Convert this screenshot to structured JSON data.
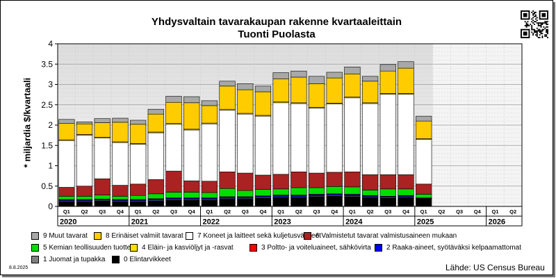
{
  "chart_data": {
    "type": "bar",
    "stacked": true,
    "title": "Yhdysvaltain tavarakaupan rakenne kvartaaleittain",
    "subtitle": "Tuonti Puolasta",
    "ylabel": "* miljardia $/kvartaali",
    "ylim": [
      0,
      4
    ],
    "yticks": [
      "0",
      "0.5",
      "1",
      "1.5",
      "2",
      "2.5",
      "3",
      "3.5",
      "4"
    ],
    "grid": true,
    "legend_position": "bottom",
    "years": [
      "2020",
      "2021",
      "2022",
      "2023",
      "2024",
      "2025",
      "2026"
    ],
    "categories": [
      "Q1",
      "Q2",
      "Q3",
      "Q4",
      "Q1",
      "Q2",
      "Q3",
      "Q4",
      "Q1",
      "Q2",
      "Q3",
      "Q4",
      "Q1",
      "Q2",
      "Q3",
      "Q4",
      "Q1",
      "Q2",
      "Q3",
      "Q4",
      "Q1",
      "Q2",
      "Q3",
      "Q4",
      "Q1",
      "Q2"
    ],
    "series": [
      {
        "name": "0 Elintarvikkeet",
        "color": "#000000",
        "values": [
          0.12,
          0.12,
          0.13,
          0.12,
          0.12,
          0.13,
          0.15,
          0.15,
          0.15,
          0.18,
          0.18,
          0.2,
          0.22,
          0.22,
          0.24,
          0.25,
          0.24,
          0.22,
          0.2,
          0.22,
          0.18,
          0,
          0,
          0,
          0,
          0
        ]
      },
      {
        "name": "1 Juomat ja tupakka",
        "color": "#808080",
        "values": [
          0.02,
          0.02,
          0.02,
          0.02,
          0.02,
          0.02,
          0.02,
          0.02,
          0.02,
          0.02,
          0.02,
          0.02,
          0.02,
          0.02,
          0.02,
          0.02,
          0.02,
          0.02,
          0.02,
          0.02,
          0.01,
          0,
          0,
          0,
          0,
          0
        ]
      },
      {
        "name": "2 Raaka-aineet, syötäväksi kelpaamattomat",
        "color": "#0000ff",
        "values": [
          0.02,
          0.02,
          0.02,
          0.02,
          0.02,
          0.03,
          0.03,
          0.03,
          0.03,
          0.03,
          0.03,
          0.03,
          0.03,
          0.03,
          0.03,
          0.03,
          0.03,
          0.02,
          0.02,
          0.02,
          0.01,
          0,
          0,
          0,
          0,
          0
        ]
      },
      {
        "name": "3 Poltto- ja voiteluaineet, sähkövirta",
        "color": "#ff0000",
        "values": [
          0.01,
          0.01,
          0.01,
          0.01,
          0.01,
          0.01,
          0.01,
          0.01,
          0.01,
          0.01,
          0.01,
          0.01,
          0.01,
          0.01,
          0.01,
          0.01,
          0.01,
          0.01,
          0.01,
          0.01,
          0.01,
          0,
          0,
          0,
          0,
          0
        ]
      },
      {
        "name": "5 Kemian teollisuuden tuotteet",
        "color": "#00dd00",
        "values": [
          0.08,
          0.08,
          0.1,
          0.08,
          0.1,
          0.12,
          0.14,
          0.14,
          0.13,
          0.2,
          0.15,
          0.16,
          0.15,
          0.18,
          0.16,
          0.18,
          0.18,
          0.13,
          0.18,
          0.16,
          0.09,
          0,
          0,
          0,
          0,
          0
        ]
      },
      {
        "name": "6 Valmistetut tavarat valmistusaineen mukaan",
        "color": "#aa2222",
        "values": [
          0.22,
          0.25,
          0.4,
          0.27,
          0.28,
          0.35,
          0.52,
          0.28,
          0.28,
          0.41,
          0.43,
          0.35,
          0.36,
          0.39,
          0.36,
          0.35,
          0.37,
          0.38,
          0.35,
          0.35,
          0.25,
          0,
          0,
          0,
          0,
          0
        ]
      },
      {
        "name": "7 Koneet ja laitteet sekä kuljetusvälineet",
        "color": "#ffffff",
        "values": [
          1.15,
          1.25,
          1.0,
          1.05,
          0.98,
          1.15,
          1.15,
          1.25,
          1.41,
          1.52,
          1.45,
          1.45,
          1.76,
          1.68,
          1.6,
          1.68,
          1.82,
          1.75,
          1.98,
          1.98,
          1.1,
          0,
          0,
          0,
          0,
          0
        ]
      },
      {
        "name": "4 Eläin- ja kasviöljyt ja -rasvat",
        "color": "#ffdd00",
        "values": [
          0.02,
          0.02,
          0.02,
          0.02,
          0.02,
          0.02,
          0.02,
          0.02,
          0.02,
          0.02,
          0.02,
          0.02,
          0.02,
          0.02,
          0.02,
          0.02,
          0.02,
          0.02,
          0.02,
          0.02,
          0.02,
          0,
          0,
          0,
          0,
          0
        ]
      },
      {
        "name": "8 Erinäiset valmiit tavarat",
        "color": "#ffcc00",
        "values": [
          0.4,
          0.26,
          0.36,
          0.48,
          0.47,
          0.44,
          0.52,
          0.65,
          0.43,
          0.57,
          0.58,
          0.58,
          0.57,
          0.63,
          0.58,
          0.62,
          0.57,
          0.53,
          0.55,
          0.62,
          0.43,
          0,
          0,
          0,
          0,
          0
        ]
      },
      {
        "name": "9 Muut tavarat",
        "color": "#a8a8a8",
        "values": [
          0.1,
          0.05,
          0.1,
          0.1,
          0.1,
          0.12,
          0.15,
          0.15,
          0.12,
          0.12,
          0.15,
          0.14,
          0.15,
          0.15,
          0.18,
          0.14,
          0.17,
          0.12,
          0.16,
          0.16,
          0.12,
          0,
          0,
          0,
          0,
          0
        ]
      }
    ]
  },
  "legend_order": [
    9,
    8,
    6,
    5,
    4,
    7,
    3,
    2,
    1,
    0
  ],
  "date_label": "8.8.2025",
  "source_label": "Lähde: US Census Bureau"
}
